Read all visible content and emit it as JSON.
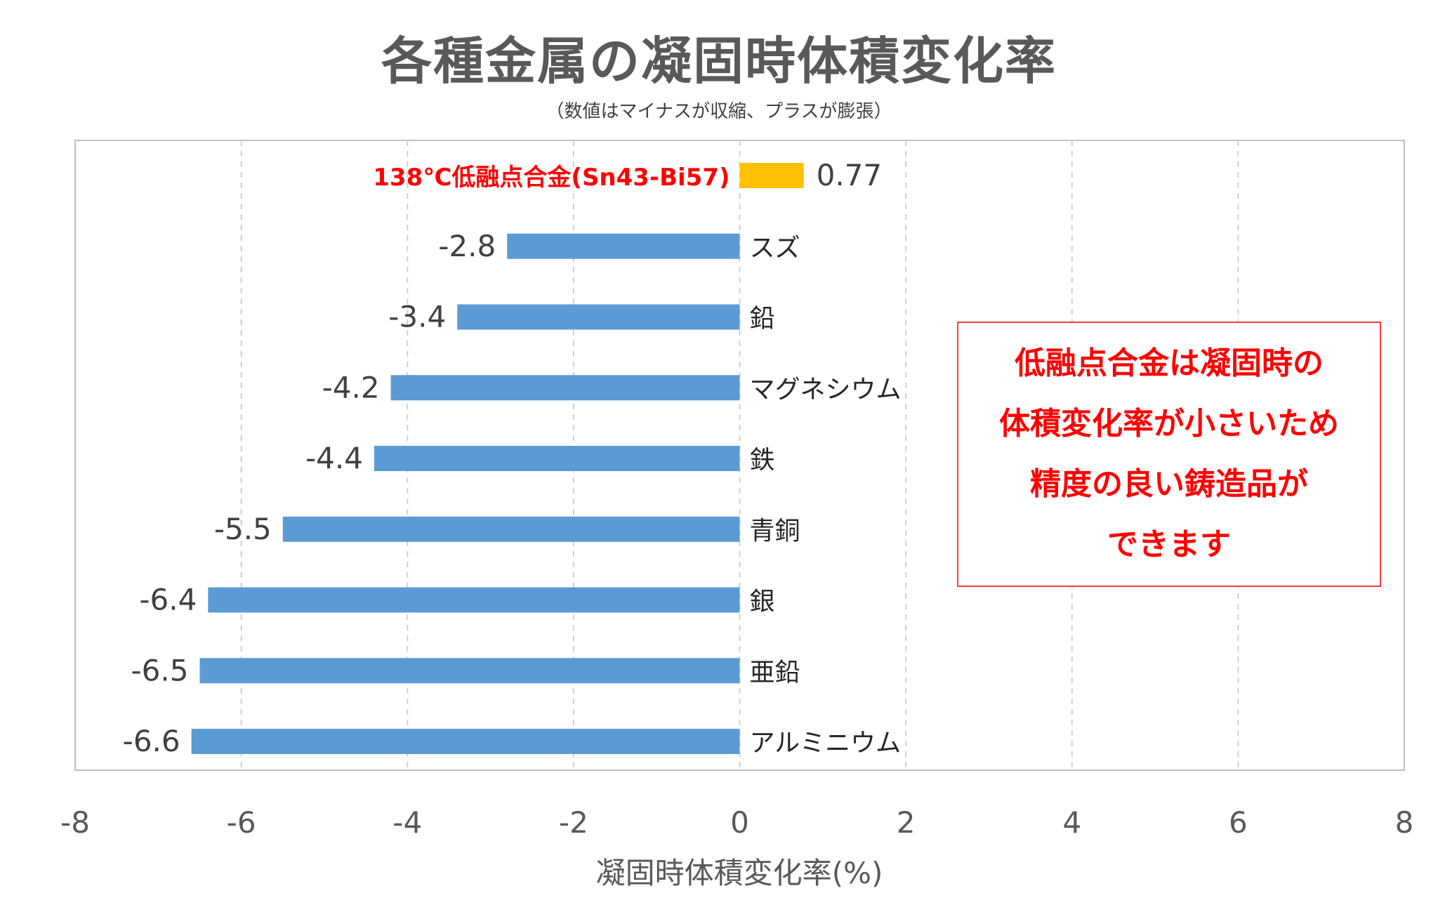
{
  "chart_data": {
    "type": "bar",
    "orientation": "horizontal",
    "title": "各種金属の凝固時体積変化率",
    "subtitle": "（数値はマイナスが収縮、プラスが膨張）",
    "xlabel": "凝固時体積変化率(%)",
    "xlim": [
      -8,
      8
    ],
    "xticks": [
      -8,
      -6,
      -4,
      -2,
      0,
      2,
      4,
      6,
      8
    ],
    "tick_labels": [
      "-8",
      "-6",
      "-4",
      "-2",
      "0",
      "2",
      "4",
      "6",
      "8"
    ],
    "grid": "vertical dashed",
    "categories": [
      "138℃低融点合金(Sn43-Bi57)",
      "スズ",
      "鉛",
      "マグネシウム",
      "鉄",
      "青銅",
      "銀",
      "亜鉛",
      "アルミニウム"
    ],
    "values": [
      0.77,
      -2.8,
      -3.4,
      -4.2,
      -4.4,
      -5.5,
      -6.4,
      -6.5,
      -6.6
    ],
    "value_labels": [
      "0.77",
      "-2.8",
      "-3.4",
      "-4.2",
      "-4.4",
      "-5.5",
      "-6.4",
      "-6.5",
      "-6.6"
    ],
    "colors": {
      "highlight_bar": "#ffc000",
      "bar": "#5b9bd5",
      "highlight_label": "#ff0000",
      "text": "#404040",
      "grid": "#d0d0d0",
      "frame": "#bfbfbf"
    }
  },
  "annotation": {
    "lines": [
      "低融点合金は凝固時の",
      "体積変化率が小さいため",
      "精度の良い鋳造品が",
      "できます"
    ],
    "color": "#ff0000"
  }
}
